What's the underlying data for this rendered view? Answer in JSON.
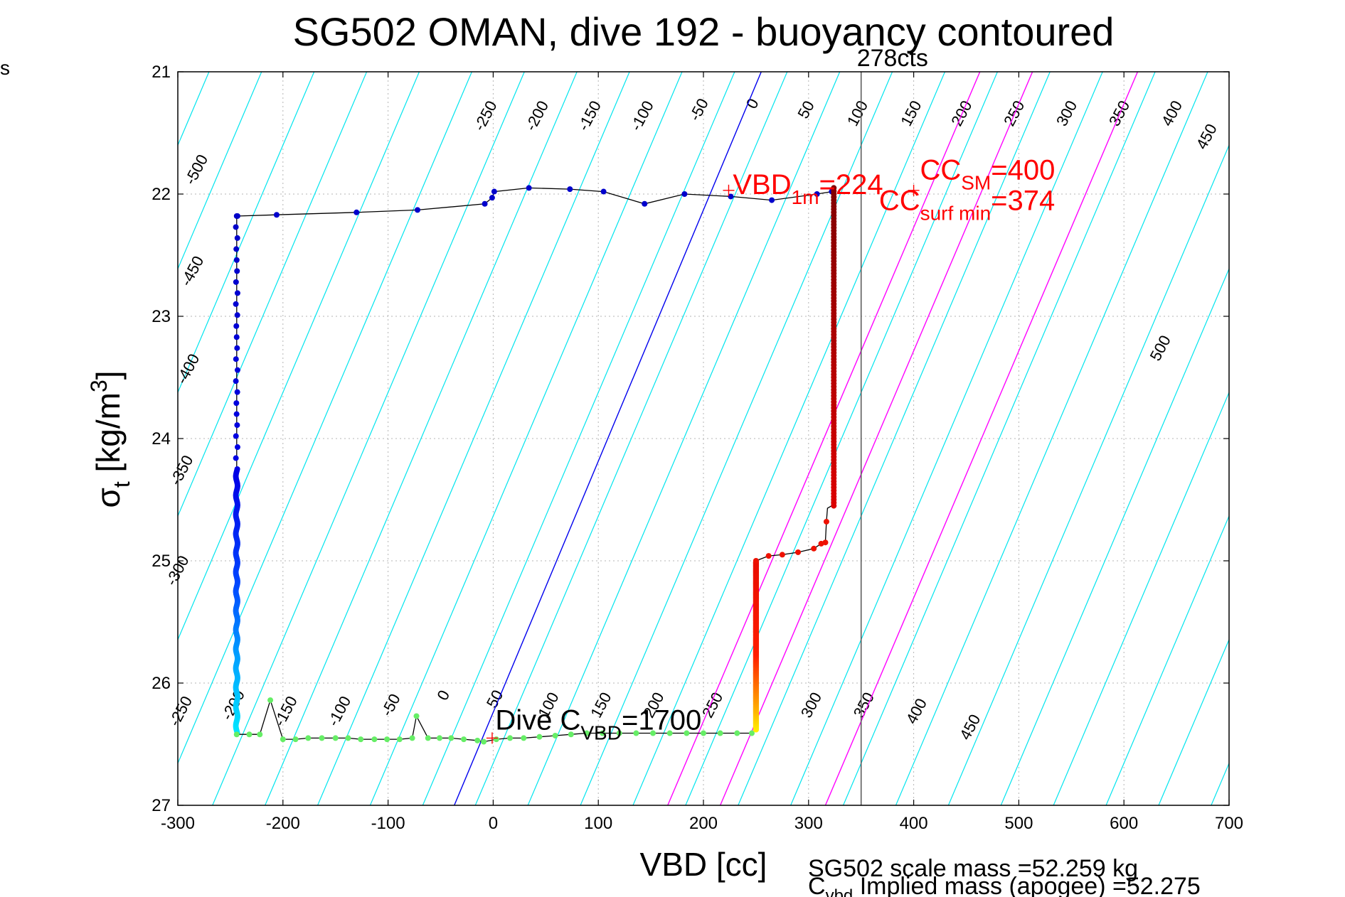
{
  "figure": {
    "corner_text": "s",
    "footer_mass": "SG502 scale mass =52.259 kg",
    "footer_implied_main": "C",
    "footer_implied_sub": "vbd",
    "footer_implied_rest": " Implied mass (apogee) =52.275"
  },
  "chart_data": {
    "type": "scatter",
    "title": "SG502 OMAN, dive 192 - buoyancy contoured",
    "xlabel": "VBD [cc]",
    "ylabel_main": "σ",
    "ylabel_sub": "t",
    "ylabel_rest": " [kg/m",
    "ylabel_sup": "3",
    "ylabel_end": "]",
    "xlim": [
      -300,
      700
    ],
    "ylim": [
      21,
      27
    ],
    "y_reversed": true,
    "xticks": [
      -300,
      -200,
      -100,
      0,
      100,
      200,
      300,
      400,
      500,
      600,
      700
    ],
    "yticks": [
      21,
      22,
      23,
      24,
      25,
      26,
      27
    ],
    "grid": true,
    "contour_lines": {
      "color": "#00e5ee",
      "levels": [
        -600,
        -550,
        -500,
        -450,
        -400,
        -350,
        -300,
        -250,
        -200,
        -150,
        -100,
        -50,
        0,
        50,
        100,
        150,
        200,
        250,
        300,
        350,
        400,
        450,
        500,
        550,
        600,
        650,
        700,
        750,
        800
      ],
      "sigma_slope_cc_per_unit": 28.5
    },
    "contour_labels_top": [
      {
        "text": "-500",
        "x": -278,
        "y": 21.82
      },
      {
        "text": "-250",
        "x": -3,
        "y": 21.38
      },
      {
        "text": "-200",
        "x": 46,
        "y": 21.38
      },
      {
        "text": "-150",
        "x": 96,
        "y": 21.38
      },
      {
        "text": "-100",
        "x": 146,
        "y": 21.38
      },
      {
        "text": "-50",
        "x": 200,
        "y": 21.33
      },
      {
        "text": "0",
        "x": 251,
        "y": 21.28
      },
      {
        "text": "50",
        "x": 302,
        "y": 21.33
      },
      {
        "text": "100",
        "x": 351,
        "y": 21.36
      },
      {
        "text": "150",
        "x": 402,
        "y": 21.36
      },
      {
        "text": "200",
        "x": 450,
        "y": 21.36
      },
      {
        "text": "250",
        "x": 500,
        "y": 21.36
      },
      {
        "text": "300",
        "x": 550,
        "y": 21.36
      },
      {
        "text": "350",
        "x": 600,
        "y": 21.36
      },
      {
        "text": "400",
        "x": 650,
        "y": 21.36
      },
      {
        "text": "450",
        "x": 683,
        "y": 21.55
      }
    ],
    "contour_labels_side": [
      {
        "text": "-450",
        "x": -282,
        "y": 22.65
      },
      {
        "text": "-400",
        "x": -286,
        "y": 23.45
      },
      {
        "text": "-350",
        "x": -292,
        "y": 24.28
      },
      {
        "text": "-300",
        "x": -296,
        "y": 25.1
      },
      {
        "text": "500",
        "x": 639,
        "y": 23.28
      }
    ],
    "contour_labels_bottom": [
      {
        "text": "-250",
        "x": -293,
        "y": 26.25
      },
      {
        "text": "-200",
        "x": -243,
        "y": 26.2
      },
      {
        "text": "-150",
        "x": -193,
        "y": 26.25
      },
      {
        "text": "-100",
        "x": -142,
        "y": 26.25
      },
      {
        "text": "-50",
        "x": -93,
        "y": 26.2
      },
      {
        "text": "0",
        "x": -43,
        "y": 26.12
      },
      {
        "text": "50",
        "x": 6,
        "y": 26.15
      },
      {
        "text": "100",
        "x": 57,
        "y": 26.2
      },
      {
        "text": "150",
        "x": 107,
        "y": 26.2
      },
      {
        "text": "200",
        "x": 157,
        "y": 26.2
      },
      {
        "text": "250",
        "x": 213,
        "y": 26.2
      },
      {
        "text": "300",
        "x": 307,
        "y": 26.2
      },
      {
        "text": "350",
        "x": 357,
        "y": 26.2
      },
      {
        "text": "400",
        "x": 407,
        "y": 26.25
      },
      {
        "text": "450",
        "x": 458,
        "y": 26.38
      }
    ],
    "reference_lines": [
      {
        "name": "0",
        "color": "#0000ee",
        "x_top": 255,
        "y_top": 21,
        "x_bottom": -37,
        "y_bottom": 27
      },
      {
        "name": "200",
        "color": "#ff00ff",
        "x_top": 463,
        "y_top": 21,
        "x_bottom": 166,
        "y_bottom": 27
      },
      {
        "name": "250",
        "color": "#ff00ff",
        "x_top": 513,
        "y_top": 21,
        "x_bottom": 216,
        "y_bottom": 27
      },
      {
        "name": "350",
        "color": "#ff00ff",
        "x_top": 613,
        "y_top": 21,
        "x_bottom": 316,
        "y_bottom": 27
      }
    ],
    "vertical_line": {
      "x": 350,
      "label": "278cts"
    },
    "descent": {
      "line_color": "#000000",
      "path": [
        [
          -244,
          22.18
        ],
        [
          -206,
          22.17
        ],
        [
          -130,
          22.15
        ],
        [
          -72,
          22.13
        ],
        [
          -8,
          22.08
        ],
        [
          -1,
          22.03
        ],
        [
          1,
          21.98
        ],
        [
          34,
          21.95
        ],
        [
          73,
          21.96
        ],
        [
          105,
          21.98
        ],
        [
          144,
          22.08
        ],
        [
          182,
          22.0
        ],
        [
          226,
          22.02
        ],
        [
          265,
          22.05
        ],
        [
          308,
          22.0
        ],
        [
          322,
          21.98
        ]
      ],
      "markers_color": "#0000cc"
    },
    "ascent_left_column": {
      "x": -244,
      "y_from": 22.18,
      "y_to": 26.42
    },
    "bottom_path": [
      [
        -244,
        26.42
      ],
      [
        -232,
        26.42
      ],
      [
        -222,
        26.42
      ],
      [
        -212,
        26.14
      ],
      [
        -200,
        26.46
      ],
      [
        -188,
        26.46
      ],
      [
        -176,
        26.45
      ],
      [
        -163,
        26.45
      ],
      [
        -150,
        26.45
      ],
      [
        -138,
        26.45
      ],
      [
        -126,
        26.46
      ],
      [
        -113,
        26.46
      ],
      [
        -101,
        26.46
      ],
      [
        -89,
        26.46
      ],
      [
        -77,
        26.45
      ],
      [
        -73,
        26.27
      ],
      [
        -62,
        26.45
      ],
      [
        -51,
        26.45
      ],
      [
        -40,
        26.45
      ],
      [
        -28,
        26.46
      ],
      [
        -15,
        26.47
      ],
      [
        -9,
        26.48
      ],
      [
        3,
        26.46
      ],
      [
        16,
        26.45
      ],
      [
        29,
        26.45
      ],
      [
        44,
        26.44
      ],
      [
        59,
        26.43
      ],
      [
        74,
        26.42
      ],
      [
        89,
        26.41
      ],
      [
        104,
        26.41
      ],
      [
        120,
        26.41
      ],
      [
        136,
        26.41
      ],
      [
        152,
        26.41
      ],
      [
        168,
        26.41
      ],
      [
        184,
        26.41
      ],
      [
        200,
        26.41
      ],
      [
        216,
        26.41
      ],
      [
        232,
        26.41
      ],
      [
        246,
        26.41
      ]
    ],
    "red_path": [
      [
        250,
        26.38
      ],
      [
        250,
        25.0
      ],
      [
        262,
        24.96
      ],
      [
        275,
        24.95
      ],
      [
        290,
        24.93
      ],
      [
        305,
        24.9
      ],
      [
        312,
        24.86
      ],
      [
        316,
        24.85
      ],
      [
        317,
        24.68
      ],
      [
        318,
        24.57
      ],
      [
        322,
        24.55
      ],
      [
        322,
        24.5
      ],
      [
        324,
        24.5
      ],
      [
        324,
        21.95
      ]
    ],
    "annotations": [
      {
        "main": "VBD",
        "sub": "1m",
        "rest": "=224",
        "color": "#ff0000",
        "x": 228,
        "y": 22.0
      },
      {
        "main": "CC",
        "sub": "SM",
        "rest": "=400",
        "color": "#ff0000",
        "x": 406,
        "y": 21.88
      },
      {
        "main": "CC",
        "sub": "surf min",
        "rest": "=374",
        "color": "#ff0000",
        "x": 367,
        "y": 22.13
      },
      {
        "main": "Dive C",
        "sub": "VBD",
        "rest": "=1700",
        "color": "#000000",
        "x": 2,
        "y": 26.38
      }
    ],
    "markers": [
      {
        "x": 224,
        "y": 21.97,
        "color": "#ff0000"
      },
      {
        "x": 400,
        "y": 21.97,
        "color": "#ff0000"
      },
      {
        "x": -1,
        "y": 26.45,
        "color": "#ff0000"
      }
    ]
  }
}
